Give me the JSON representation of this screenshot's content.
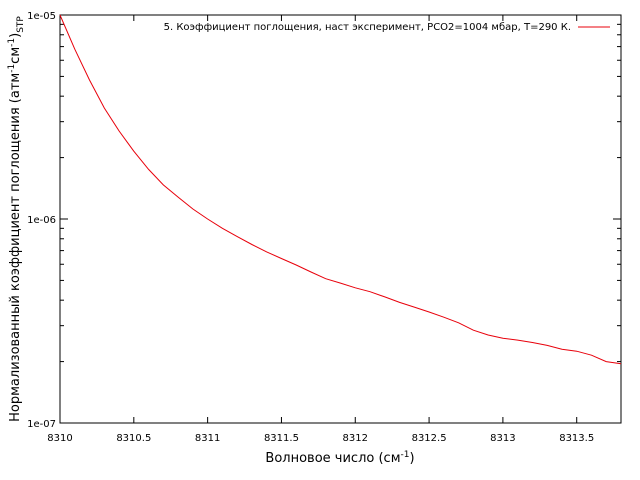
{
  "chart_data": {
    "type": "line",
    "title": "",
    "xlabel": {
      "text": "Волновое число (см",
      "sup": "-1",
      "end": ")"
    },
    "ylabel": {
      "part1": "Нормализованный коэффициент поглощения (атм",
      "sup1": "-1",
      "part2": "см",
      "sup2": "-1",
      "part3": ")",
      "sub": "STP"
    },
    "x_ticks": [
      "8310",
      "8310.5",
      "8311",
      "8311.5",
      "8312",
      "8312.5",
      "8313",
      "8313.5"
    ],
    "x_tick_values": [
      8310,
      8310.5,
      8311,
      8311.5,
      8312,
      8312.5,
      8313,
      8313.5
    ],
    "y_ticks": [
      "1e-07",
      "1e-06",
      "1e-05"
    ],
    "y_tick_values": [
      1e-07,
      1e-06,
      1e-05
    ],
    "xlim": [
      8310,
      8313.8
    ],
    "ylim": [
      1e-07,
      1e-05
    ],
    "y_scale": "log",
    "grid": false,
    "legend_position": "top-right",
    "series": [
      {
        "name": "5. Коэффициент поглощения, наст эксперимент,  PCO2=1004 мбар, T=290 К.",
        "color": "#e8000b",
        "x": [
          8310.0,
          8310.1,
          8310.2,
          8310.3,
          8310.4,
          8310.5,
          8310.6,
          8310.7,
          8310.8,
          8310.9,
          8311.0,
          8311.1,
          8311.2,
          8311.3,
          8311.4,
          8311.5,
          8311.6,
          8311.7,
          8311.8,
          8311.9,
          8312.0,
          8312.1,
          8312.2,
          8312.3,
          8312.4,
          8312.5,
          8312.6,
          8312.7,
          8312.8,
          8312.9,
          8313.0,
          8313.1,
          8313.2,
          8313.3,
          8313.4,
          8313.5,
          8313.6,
          8313.7,
          8313.8
        ],
        "y": [
          1e-05,
          6.8e-06,
          4.8e-06,
          3.5e-06,
          2.7e-06,
          2.15e-06,
          1.75e-06,
          1.47e-06,
          1.28e-06,
          1.12e-06,
          1e-06,
          9e-07,
          8.2e-07,
          7.5e-07,
          6.9e-07,
          6.4e-07,
          5.95e-07,
          5.5e-07,
          5.1e-07,
          4.85e-07,
          4.6e-07,
          4.4e-07,
          4.15e-07,
          3.9e-07,
          3.7e-07,
          3.5e-07,
          3.3e-07,
          3.1e-07,
          2.85e-07,
          2.7e-07,
          2.6e-07,
          2.55e-07,
          2.48e-07,
          2.4e-07,
          2.3e-07,
          2.25e-07,
          2.15e-07,
          2e-07,
          1.95e-07
        ]
      }
    ]
  }
}
